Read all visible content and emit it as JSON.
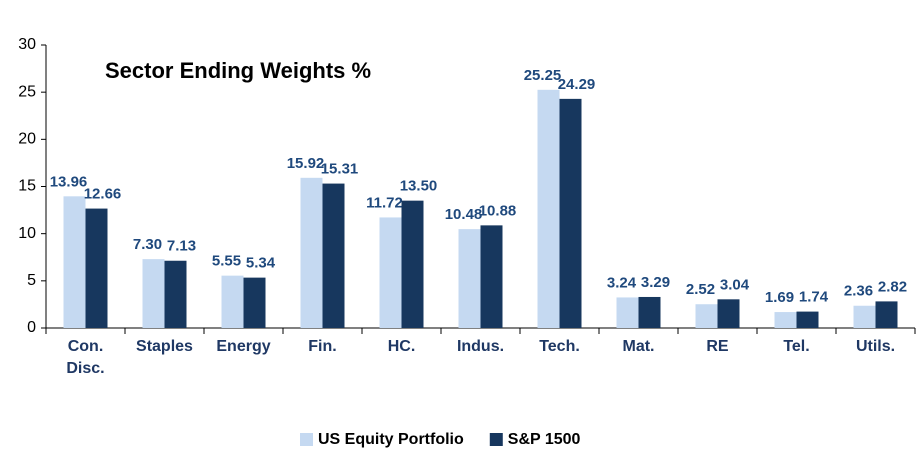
{
  "chart_data": {
    "type": "bar",
    "title": "Sector Ending Weights %",
    "categories": [
      "Con. Disc.",
      "Staples",
      "Energy",
      "Fin.",
      "HC.",
      "Indus.",
      "Tech.",
      "Mat.",
      "RE",
      "Tel.",
      "Utils."
    ],
    "series": [
      {
        "name": "US Equity Portfolio",
        "color": "#c5d9f1",
        "values": [
          13.96,
          7.3,
          5.55,
          15.92,
          11.72,
          10.48,
          25.25,
          3.24,
          2.52,
          1.69,
          2.36
        ],
        "value_labels": [
          "13.96",
          "7.30",
          "5.55",
          "15.92",
          "11.72",
          "10.48",
          "25.25",
          "3.24",
          "2.52",
          "1.69",
          "2.36"
        ]
      },
      {
        "name": "S&P 1500",
        "color": "#17375e",
        "values": [
          12.66,
          7.13,
          5.34,
          15.31,
          13.5,
          10.88,
          24.29,
          3.29,
          3.04,
          1.74,
          2.82
        ],
        "value_labels": [
          "12.66",
          "7.13",
          "5.34",
          "15.31",
          "13.50",
          "10.88",
          "24.29",
          "3.29",
          "3.04",
          "1.74",
          "2.82"
        ]
      }
    ],
    "ylim": [
      0,
      30
    ],
    "yticks": [
      0,
      5,
      10,
      15,
      20,
      25,
      30
    ],
    "grid": false,
    "legend": "bottom"
  }
}
